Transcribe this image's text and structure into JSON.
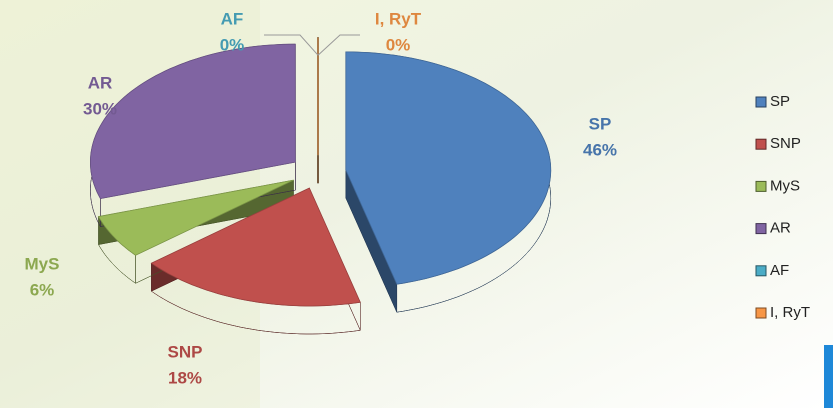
{
  "chart_data": {
    "type": "pie",
    "categories": [
      "SP",
      "SNP",
      "MyS",
      "AR",
      "AF",
      "I, RyT"
    ],
    "values": [
      46,
      18,
      6,
      30,
      0,
      0
    ],
    "value_labels": [
      "46%",
      "18%",
      "6%",
      "30%",
      "0%",
      "0%"
    ],
    "colors": [
      "#4f81bd",
      "#c0504d",
      "#9bbb59",
      "#8064a2",
      "#4bacc6",
      "#f79646"
    ],
    "legend": "right"
  }
}
